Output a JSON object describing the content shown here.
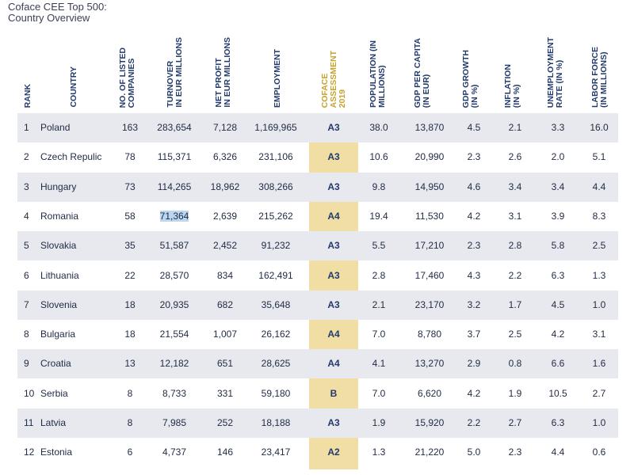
{
  "title_lines": [
    "Coface CEE Top 500:",
    "Country Overview"
  ],
  "headers": {
    "rank": "RANK",
    "country": "COUNTRY",
    "companies": "NO. OF LISTED\nCOMPANIES",
    "turnover": "TURNOVER\nIN EUR MILLIONS",
    "profit": "NET PROFIT\nIN EUR MILLIONS",
    "employment": "EMPLOYMENT",
    "assessment": "COFACE\nASSESSMENT\n2019",
    "population": "POPULATION (IN\nMILLIONS)",
    "gdp_capita": "GDP PER CAPITA\n(IN EUR)",
    "gdp_growth": "GDP GROWTH\n(IN %)",
    "inflation": "INFLATION\n(IN %)",
    "unemployment": "UNEMPLOYMENT\nRATE (IN %)",
    "labor": "LABOR FORCE\n(IN MILLIONS)"
  },
  "colors": {
    "header_text": "#223a6b",
    "assessment_header": "#c8a22c",
    "assessment_column": "#f1dea5",
    "row_shade": "#e8e9ef",
    "selection": "#bcd6f0"
  },
  "rows": [
    {
      "rank": "1",
      "country": "Poland",
      "companies": "163",
      "turnover": "283,654",
      "profit": "7,128",
      "employment": "1,169,965",
      "assessment": "A3",
      "population": "38.0",
      "gdp_capita": "13,870",
      "gdp_growth": "4.5",
      "inflation": "2.1",
      "unemployment": "3.3",
      "labor": "16.0"
    },
    {
      "rank": "2",
      "country": "Czech Repulic",
      "companies": "78",
      "turnover": "115,371",
      "profit": "6,326",
      "employment": "231,106",
      "assessment": "A3",
      "population": "10.6",
      "gdp_capita": "20,990",
      "gdp_growth": "2.3",
      "inflation": "2.6",
      "unemployment": "2.0",
      "labor": "5.1"
    },
    {
      "rank": "3",
      "country": "Hungary",
      "companies": "73",
      "turnover": "114,265",
      "profit": "18,962",
      "employment": "308,266",
      "assessment": "A3",
      "population": "9.8",
      "gdp_capita": "14,950",
      "gdp_growth": "4.6",
      "inflation": "3.4",
      "unemployment": "3.4",
      "labor": "4.4"
    },
    {
      "rank": "4",
      "country": "Romania",
      "companies": "58",
      "turnover": "71,364",
      "profit": "2,639",
      "employment": "215,262",
      "assessment": "A4",
      "population": "19.4",
      "gdp_capita": "11,530",
      "gdp_growth": "4.2",
      "inflation": "3.1",
      "unemployment": "3.9",
      "labor": "8.3"
    },
    {
      "rank": "5",
      "country": "Slovakia",
      "companies": "35",
      "turnover": "51,587",
      "profit": "2,452",
      "employment": "91,232",
      "assessment": "A3",
      "population": "5.5",
      "gdp_capita": "17,210",
      "gdp_growth": "2.3",
      "inflation": "2.8",
      "unemployment": "5.8",
      "labor": "2.5"
    },
    {
      "rank": "6",
      "country": "Lithuania",
      "companies": "22",
      "turnover": "28,570",
      "profit": "834",
      "employment": "162,491",
      "assessment": "A3",
      "population": "2.8",
      "gdp_capita": "17,460",
      "gdp_growth": "4.3",
      "inflation": "2.2",
      "unemployment": "6.3",
      "labor": "1.3"
    },
    {
      "rank": "7",
      "country": "Slovenia",
      "companies": "18",
      "turnover": "20,935",
      "profit": "682",
      "employment": "35,648",
      "assessment": "A3",
      "population": "2.1",
      "gdp_capita": "23,170",
      "gdp_growth": "3.2",
      "inflation": "1.7",
      "unemployment": "4.5",
      "labor": "1.0"
    },
    {
      "rank": "8",
      "country": "Bulgaria",
      "companies": "18",
      "turnover": "21,554",
      "profit": "1,007",
      "employment": "26,162",
      "assessment": "A4",
      "population": "7.0",
      "gdp_capita": "8,780",
      "gdp_growth": "3.7",
      "inflation": "2.5",
      "unemployment": "4.2",
      "labor": "3.1"
    },
    {
      "rank": "9",
      "country": "Croatia",
      "companies": "13",
      "turnover": "12,182",
      "profit": "651",
      "employment": "28,625",
      "assessment": "A4",
      "population": "4.1",
      "gdp_capita": "13,270",
      "gdp_growth": "2.9",
      "inflation": "0.8",
      "unemployment": "6.6",
      "labor": "1.6"
    },
    {
      "rank": "10",
      "country": "Serbia",
      "companies": "8",
      "turnover": "8,733",
      "profit": "331",
      "employment": "59,180",
      "assessment": "B",
      "population": "7.0",
      "gdp_capita": "6,620",
      "gdp_growth": "4.2",
      "inflation": "1.9",
      "unemployment": "10.5",
      "labor": "2.7"
    },
    {
      "rank": "11",
      "country": "Latvia",
      "companies": "8",
      "turnover": "7,985",
      "profit": "252",
      "employment": "18,188",
      "assessment": "A3",
      "population": "1.9",
      "gdp_capita": "15,920",
      "gdp_growth": "2.2",
      "inflation": "2.7",
      "unemployment": "6.3",
      "labor": "1.0"
    },
    {
      "rank": "12",
      "country": "Estonia",
      "companies": "6",
      "turnover": "4,737",
      "profit": "146",
      "employment": "23,417",
      "assessment": "A2",
      "population": "1.3",
      "gdp_capita": "21,220",
      "gdp_growth": "5.0",
      "inflation": "2.3",
      "unemployment": "4.4",
      "labor": "0.6"
    }
  ]
}
